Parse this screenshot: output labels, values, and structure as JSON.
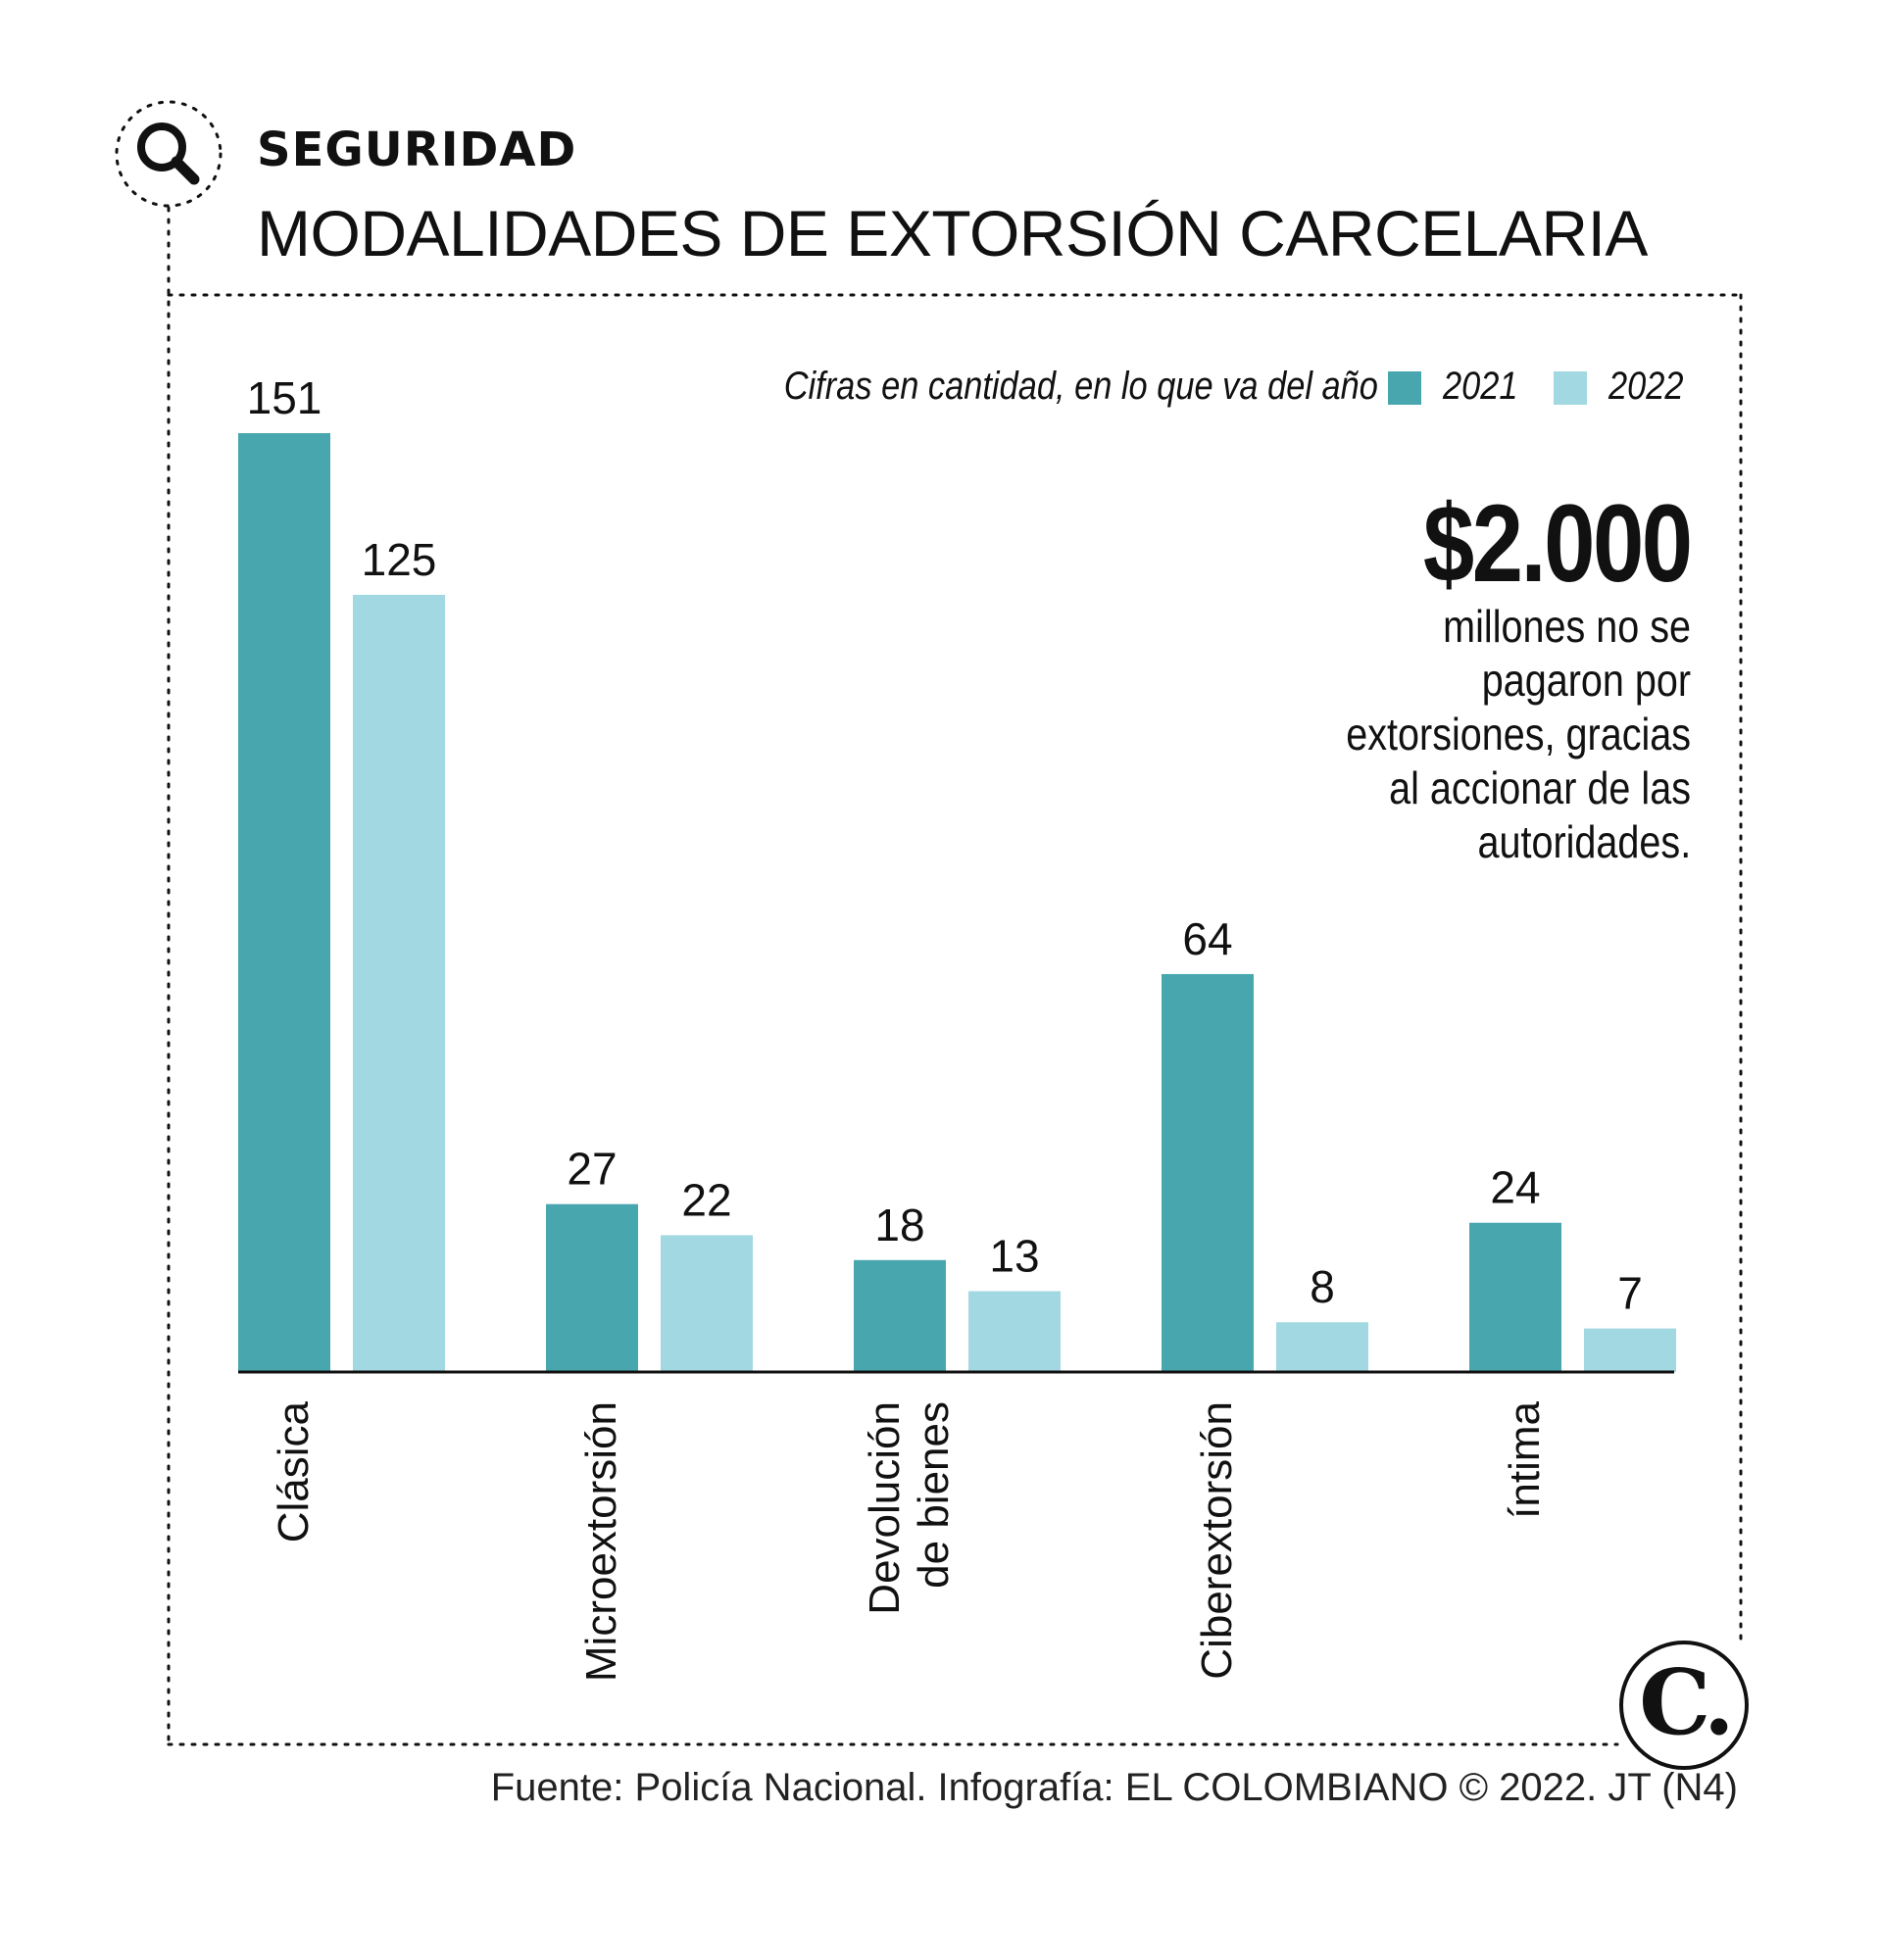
{
  "header": {
    "section": "SEGURIDAD",
    "title": "MODALIDADES DE EXTORSIÓN CARCELARIA",
    "icon": "magnifier-icon"
  },
  "subtitle": "Cifras en cantidad, en lo que va del año",
  "callout": {
    "value": "$2.000",
    "lines": [
      "millones no se",
      "pagaron por",
      "extorsiones, gracias",
      "al accionar de las",
      "autoridades."
    ]
  },
  "footer": {
    "source": "Fuente: Policía Nacional. Infografía: EL COLOMBIANO © 2022. JT (N4)",
    "logo_text": "C."
  },
  "colors": {
    "series_2021": "#48a6ae",
    "series_2022": "#a2d8e1",
    "frame": "#111111"
  },
  "chart_data": {
    "type": "bar",
    "title": "MODALIDADES DE EXTORSIÓN CARCELARIA",
    "subtitle": "Cifras en cantidad, en lo que va del año",
    "categories": [
      [
        "Clásica"
      ],
      [
        "Microextorsión"
      ],
      [
        "Devolución",
        "de bienes"
      ],
      [
        "Ciberextorsión"
      ],
      [
        "íntima"
      ]
    ],
    "series": [
      {
        "name": "2021",
        "values": [
          151,
          27,
          18,
          64,
          24
        ]
      },
      {
        "name": "2022",
        "values": [
          125,
          22,
          13,
          8,
          7
        ]
      }
    ],
    "ylim": [
      0,
      151
    ],
    "grid": false,
    "legend": "top-right",
    "value_labels": true
  }
}
